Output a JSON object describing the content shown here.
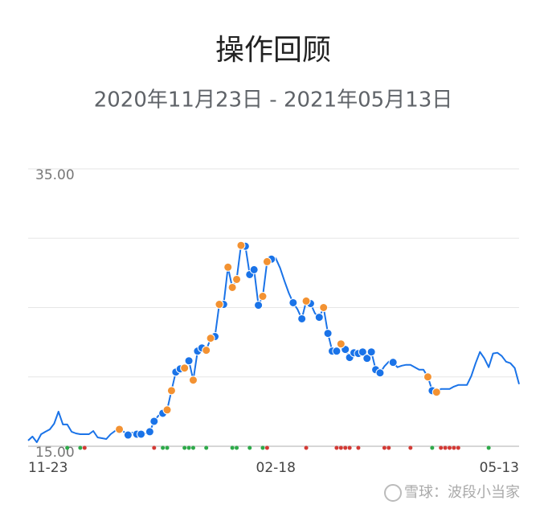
{
  "chart_data": {
    "type": "line",
    "title": "操作回顾",
    "subtitle": "2020年11月23日 - 2021年05月13日",
    "categories": [
      "11-23",
      null,
      null,
      null,
      null,
      null,
      null,
      null,
      null,
      null,
      null,
      null,
      null,
      null,
      null,
      null,
      null,
      null,
      null,
      null,
      null,
      null,
      null,
      null,
      null,
      null,
      null,
      null,
      null,
      null,
      null,
      null,
      null,
      null,
      null,
      null,
      null,
      null,
      null,
      null,
      null,
      null,
      null,
      null,
      null,
      null,
      null,
      null,
      null,
      null,
      null,
      null,
      null,
      null,
      null,
      null,
      null,
      "02-18",
      null,
      null,
      null,
      null,
      null,
      null,
      null,
      null,
      null,
      null,
      null,
      null,
      null,
      null,
      null,
      null,
      null,
      null,
      null,
      null,
      null,
      null,
      null,
      null,
      null,
      null,
      null,
      null,
      null,
      null,
      null,
      null,
      null,
      null,
      null,
      null,
      null,
      null,
      null,
      null,
      null,
      null,
      null,
      null,
      null,
      null,
      null,
      null,
      null,
      null,
      null,
      null,
      null,
      null,
      null,
      "05-13"
    ],
    "series": [
      {
        "color": "#1a73e8",
        "values": [
          15.41,
          15.7,
          15.29,
          15.87,
          16.05,
          16.22,
          16.63,
          17.5,
          16.57,
          16.57,
          16.05,
          15.93,
          15.87,
          15.87,
          15.87,
          16.1,
          15.64,
          15.58,
          15.52,
          15.87,
          16.1,
          16.22,
          16.05,
          15.81,
          15.99,
          15.87,
          15.87,
          15.93,
          16.05,
          16.8,
          17.21,
          17.38,
          17.62,
          19.01,
          20.35,
          20.58,
          20.64,
          21.16,
          19.77,
          21.86,
          22.09,
          21.92,
          22.79,
          22.91,
          25.23,
          25.23,
          27.91,
          26.45,
          27.03,
          29.48,
          29.42,
          27.38,
          27.73,
          25.17,
          25.81,
          28.31,
          28.49,
          28.55,
          27.85,
          26.92,
          26.05,
          25.35,
          24.88,
          24.19,
          25.47,
          25.29,
          24.59,
          24.3,
          25.0,
          23.14,
          21.86,
          21.86,
          22.38,
          21.98,
          21.4,
          21.74,
          21.69,
          21.8,
          21.34,
          21.8,
          20.52,
          20.29,
          20.76,
          21.1,
          21.05,
          20.7,
          20.81,
          20.87,
          20.87,
          20.7,
          20.52,
          20.52,
          20.0,
          19.01,
          18.9,
          19.13,
          19.13,
          19.13,
          19.3,
          19.42,
          19.42,
          19.42,
          20.06,
          20.99,
          21.8,
          21.34,
          20.7,
          21.69,
          21.74,
          21.51,
          21.1,
          20.99,
          20.64,
          19.48
        ]
      }
    ],
    "markers": [
      {
        "color": "#1a73e8",
        "indices": [
          23,
          25,
          26,
          28,
          29,
          31,
          34,
          35,
          37,
          39,
          40,
          43,
          45,
          50,
          51,
          52,
          53,
          56,
          61,
          63,
          65,
          67,
          69,
          70,
          71,
          73,
          74,
          75,
          76,
          77,
          78,
          79,
          80,
          81,
          84,
          93
        ]
      },
      {
        "color": "#f39232",
        "indices": [
          21,
          32,
          33,
          36,
          38,
          41,
          42,
          44,
          46,
          47,
          48,
          49,
          54,
          55,
          64,
          68,
          72,
          92,
          94
        ]
      }
    ],
    "signals": [
      {
        "color": "#2eaa4a",
        "indices": [
          9,
          12,
          31,
          32,
          36,
          37,
          38,
          41,
          47,
          48,
          51,
          54,
          93,
          106
        ]
      },
      {
        "color": "#d33a35",
        "indices": [
          13,
          29,
          55,
          64,
          71,
          72,
          73,
          74,
          76,
          82,
          83,
          88,
          95,
          96,
          97,
          98,
          99
        ]
      }
    ],
    "ylim": [
      15,
      35
    ],
    "yticks": [
      {
        "value": 35,
        "label": "35.00"
      },
      {
        "value": 15,
        "label": "15.00"
      }
    ],
    "ygrid": [
      15,
      20,
      25,
      30,
      35
    ],
    "watermark": "雪球：波段小当家"
  }
}
